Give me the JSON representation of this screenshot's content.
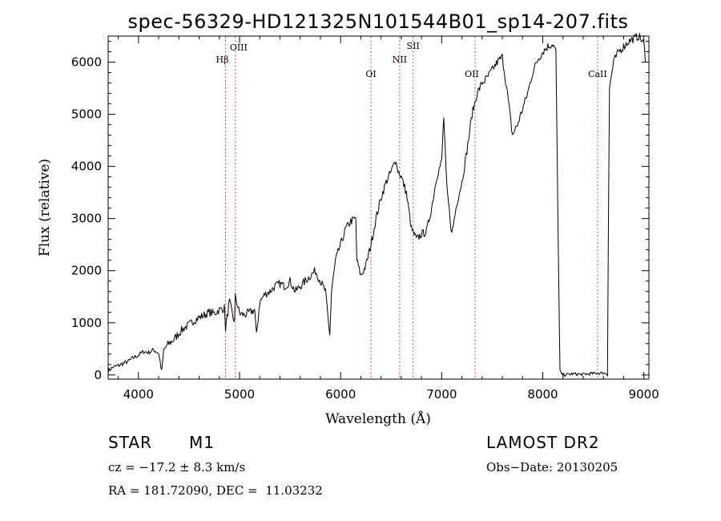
{
  "chart_data": {
    "type": "line",
    "title": "spec-56329-HD121325N101544B01_sp14-207.fits",
    "xlabel": "Wavelength (Å)",
    "ylabel": "Flux (relative)",
    "xlim": [
      3700,
      9050
    ],
    "ylim": [
      -80,
      6500
    ],
    "x_ticks": [
      4000,
      5000,
      6000,
      7000,
      8000,
      9000
    ],
    "y_ticks": [
      0,
      1000,
      2000,
      3000,
      4000,
      5000,
      6000
    ],
    "grid": false,
    "series": [
      {
        "x": [
          3700,
          3750,
          3800,
          3850,
          3900,
          3950,
          4000,
          4050,
          4100,
          4150,
          4200,
          4230,
          4250,
          4300,
          4350,
          4400,
          4450,
          4500,
          4550,
          4600,
          4650,
          4700,
          4750,
          4800,
          4850,
          4861,
          4900,
          4950,
          4959,
          5000,
          5050,
          5100,
          5150,
          5167,
          5200,
          5250,
          5300,
          5350,
          5400,
          5450,
          5500,
          5550,
          5600,
          5650,
          5700,
          5750,
          5800,
          5850,
          5880,
          5893,
          5910,
          5950,
          6000,
          6050,
          6100,
          6150,
          6160,
          6200,
          6250,
          6300,
          6350,
          6400,
          6450,
          6500,
          6550,
          6560,
          6600,
          6650,
          6700,
          6750,
          6800,
          6850,
          6900,
          6950,
          7000,
          7020,
          7050,
          7100,
          7150,
          7200,
          7250,
          7300,
          7350,
          7400,
          7450,
          7500,
          7550,
          7600,
          7650,
          7700,
          7750,
          7800,
          7850,
          7900,
          7950,
          8000,
          8050,
          8100,
          8130,
          8150,
          8170,
          8180,
          8200,
          8300,
          8400,
          8500,
          8600,
          8640,
          8650,
          8660,
          8700,
          8750,
          8800,
          8850,
          8900,
          8950,
          9000,
          9020
        ],
        "y": [
          80,
          150,
          180,
          220,
          260,
          330,
          380,
          450,
          430,
          480,
          420,
          70,
          480,
          600,
          680,
          800,
          900,
          960,
          1050,
          1100,
          1150,
          1200,
          1180,
          1250,
          1280,
          900,
          1400,
          1000,
          1500,
          1180,
          1150,
          1200,
          1250,
          750,
          1400,
          1550,
          1600,
          1700,
          1750,
          1700,
          1800,
          1600,
          1700,
          1800,
          1900,
          2000,
          1800,
          1600,
          1000,
          780,
          1600,
          2200,
          2500,
          2800,
          2950,
          3000,
          2200,
          1900,
          2100,
          2500,
          3000,
          3400,
          3700,
          3900,
          4150,
          3950,
          3800,
          3500,
          2800,
          2600,
          2700,
          2750,
          3200,
          3800,
          4100,
          4950,
          3600,
          2700,
          3300,
          3700,
          4300,
          5000,
          5400,
          5600,
          5700,
          5850,
          6000,
          6100,
          5400,
          4600,
          4800,
          5100,
          5400,
          5800,
          6050,
          6200,
          6300,
          6350,
          6200,
          3000,
          80,
          20,
          0,
          20,
          10,
          30,
          40,
          20,
          3000,
          5500,
          6000,
          6200,
          6300,
          6400,
          6450,
          6500,
          6350,
          6000
        ]
      }
    ],
    "lines": [
      {
        "label": "Hβ",
        "x": 4861
      },
      {
        "label": "OIII",
        "x": 4959
      },
      {
        "label": "OI",
        "x": 6300
      },
      {
        "label": "NII",
        "x": 6584
      },
      {
        "label": "OII",
        "x": 7330
      },
      {
        "label": "SII",
        "x": 6717
      },
      {
        "label": "CaII",
        "x": 8542
      }
    ],
    "line_color": "#000000",
    "marker_color": "#ff0000"
  },
  "info": {
    "object_class": "STAR",
    "subclass": "M1",
    "survey": "LAMOST DR2",
    "cz": "cz = −17.2 ± 8.3 km/s",
    "obs_date": "Obs−Date: 20130205",
    "coords": "RA = 181.72090, DEC =  11.03232"
  }
}
